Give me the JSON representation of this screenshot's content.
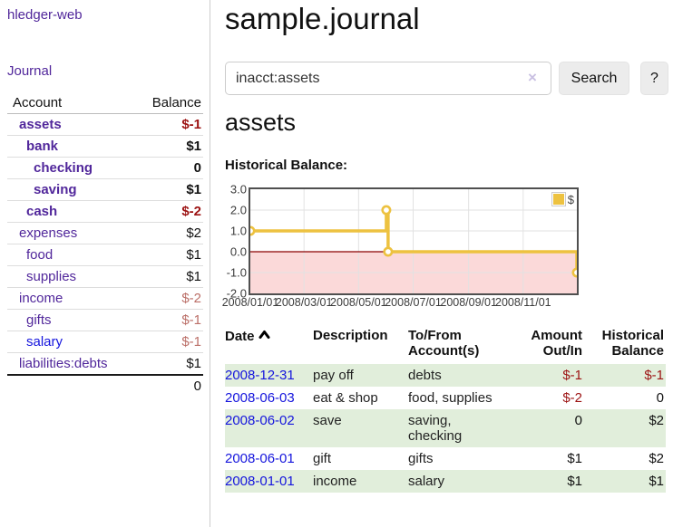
{
  "colors": {
    "link_purple": "#51279b",
    "link_blue": "#1515dd",
    "negative_red": "#9c1313",
    "pale_negative_red": "#bb6f68",
    "row_green": "#e1eedb",
    "series_yellow": "#EDC240"
  },
  "sidebar": {
    "brand": "hledger-web",
    "nav": {
      "journal": "Journal"
    },
    "accounts_table": {
      "headers": {
        "account": "Account",
        "balance": "Balance"
      },
      "rows": [
        {
          "name": "assets",
          "balance": "$-1"
        },
        {
          "name": "bank",
          "balance": "$1"
        },
        {
          "name": "checking",
          "balance": "0"
        },
        {
          "name": "saving",
          "balance": "$1"
        },
        {
          "name": "cash",
          "balance": "$-2"
        },
        {
          "name": "expenses",
          "balance": "$2"
        },
        {
          "name": "food",
          "balance": "$1"
        },
        {
          "name": "supplies",
          "balance": "$1"
        },
        {
          "name": "income",
          "balance": "$-2"
        },
        {
          "name": "gifts",
          "balance": "$-1"
        },
        {
          "name": "salary",
          "balance": "$-1"
        },
        {
          "name": "liabilities:debts",
          "balance": "$1"
        }
      ],
      "total": "0"
    }
  },
  "main": {
    "title": "sample.journal",
    "search": {
      "value": "inacct:assets",
      "clear_icon": "×",
      "button": "Search",
      "help_button": "?"
    },
    "account_heading": "assets",
    "chart_label": "Historical Balance:",
    "register": {
      "headers": [
        "Date",
        "Description",
        "To/From Account(s)",
        "Amount Out/In",
        "Historical Balance"
      ],
      "rows": [
        {
          "date": "2008-12-31",
          "description": "pay off",
          "accounts": "debts",
          "amount": "$-1",
          "balance": "$-1"
        },
        {
          "date": "2008-06-03",
          "description": "eat & shop",
          "accounts": "food, supplies",
          "amount": "$-2",
          "balance": "0"
        },
        {
          "date": "2008-06-02",
          "description": "save",
          "accounts": "saving, checking",
          "amount": "0",
          "balance": "$2"
        },
        {
          "date": "2008-06-01",
          "description": "gift",
          "accounts": "gifts",
          "amount": "$1",
          "balance": "$2"
        },
        {
          "date": "2008-01-01",
          "description": "income",
          "accounts": "salary",
          "amount": "$1",
          "balance": "$1"
        }
      ]
    }
  },
  "chart_data": {
    "type": "line",
    "step": true,
    "title": "Historical Balance:",
    "legend": {
      "position": "top-right",
      "entries": [
        "$"
      ]
    },
    "x_range": [
      "2008-01-01",
      "2008-12-31"
    ],
    "ylim": [
      -2,
      3
    ],
    "y_ticks": [
      3.0,
      2.0,
      1.0,
      0.0,
      -1.0,
      -2.0
    ],
    "x_ticks": [
      "2008/01/01",
      "2008/03/01",
      "2008/05/01",
      "2008/07/01",
      "2008/09/01",
      "2008/11/01"
    ],
    "series": [
      {
        "name": "$",
        "color": "#EDC240",
        "points": [
          [
            "2008-01-01",
            1
          ],
          [
            "2008-06-01",
            2
          ],
          [
            "2008-06-03",
            0
          ],
          [
            "2008-12-31",
            -1
          ]
        ]
      }
    ],
    "grid": true,
    "zero_line_color": "#8b0000",
    "negative_region_color": "#fbd9d9"
  }
}
